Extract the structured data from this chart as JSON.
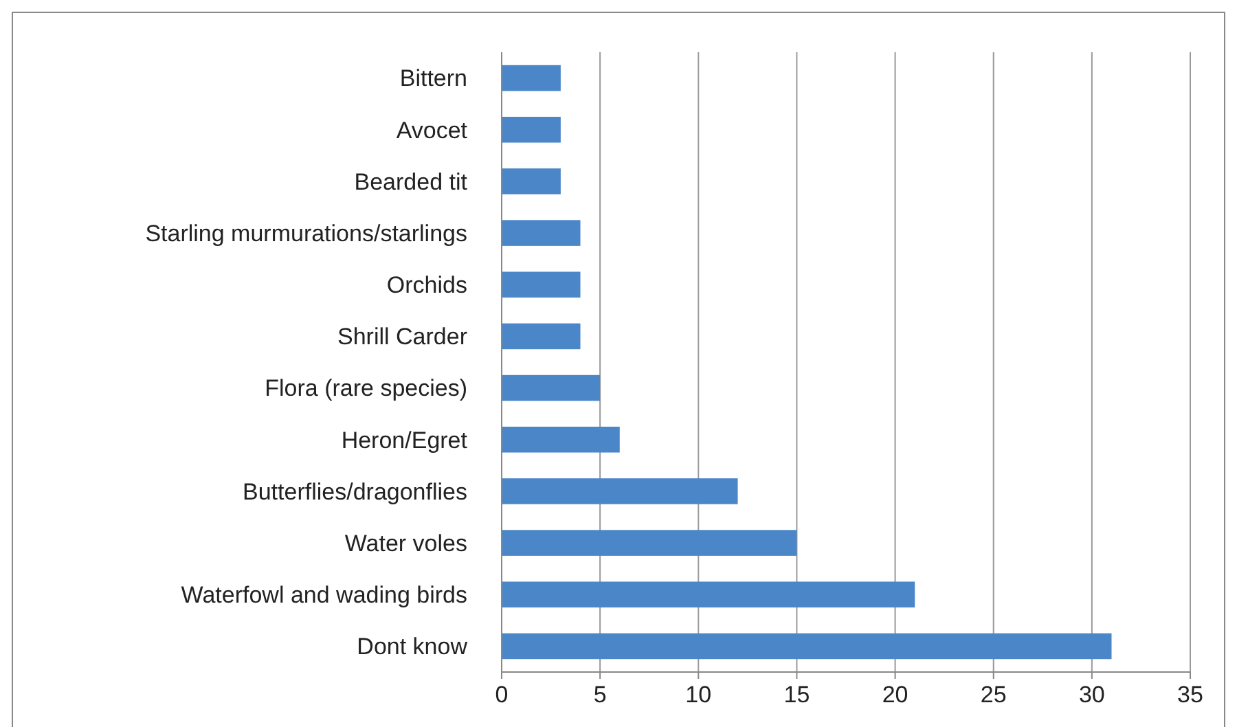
{
  "chart_data": {
    "type": "bar",
    "orientation": "horizontal",
    "categories": [
      "Bittern",
      "Avocet",
      "Bearded tit",
      "Starling murmurations/starlings",
      "Orchids",
      "Shrill Carder",
      "Flora (rare species)",
      "Heron/Egret",
      "Butterflies/dragonflies",
      "Water voles",
      "Waterfowl and wading birds",
      "Dont know"
    ],
    "values": [
      3,
      3,
      3,
      4,
      4,
      4,
      5,
      6,
      12,
      15,
      21,
      31
    ],
    "color": "#4a86c8",
    "xlim": [
      0,
      35
    ],
    "xticks": [
      0,
      5,
      10,
      15,
      20,
      25,
      30,
      35
    ],
    "grid": "x"
  }
}
